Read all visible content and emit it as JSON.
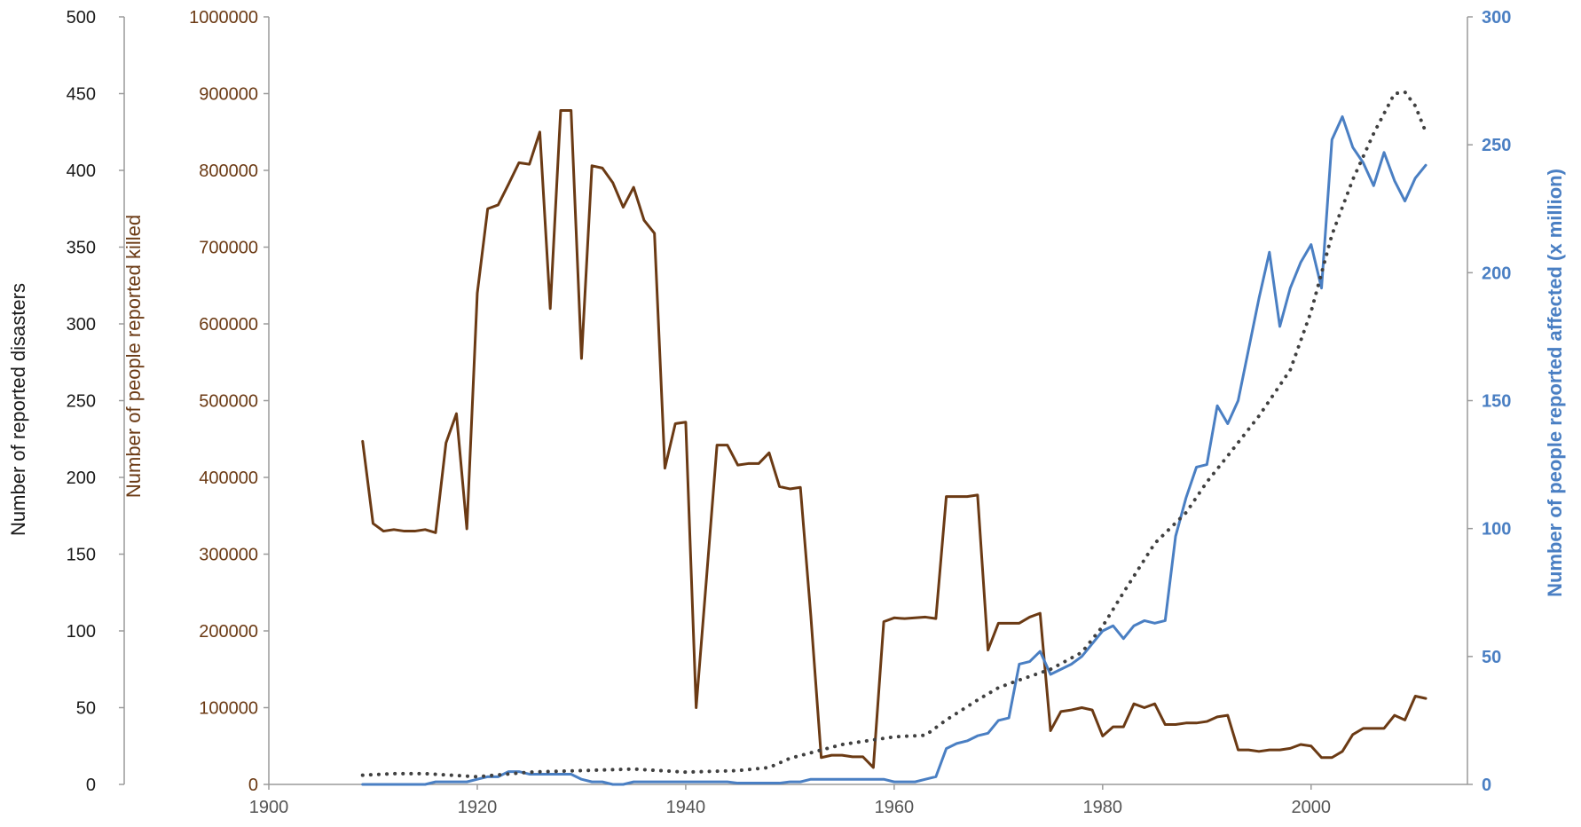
{
  "chart_data": {
    "type": "line",
    "x_axis": {
      "range": [
        1900,
        2015
      ],
      "ticks": [
        1900,
        1920,
        1940,
        1960,
        1980,
        2000
      ]
    },
    "axes": {
      "disasters": {
        "label": "Number of reported disasters",
        "range": [
          0,
          500
        ],
        "ticks": [
          0,
          50,
          100,
          150,
          200,
          250,
          300,
          350,
          400,
          450,
          500
        ],
        "color": "#1a1a1a",
        "position": "outer-left"
      },
      "killed": {
        "label": "Number of people reported killed",
        "range": [
          0,
          1000000
        ],
        "ticks": [
          0,
          100000,
          200000,
          300000,
          400000,
          500000,
          600000,
          700000,
          800000,
          900000,
          1000000
        ],
        "color": "#6b3a14",
        "position": "inner-left"
      },
      "affected": {
        "label": "Number of people reported affected (x million)",
        "range": [
          0,
          300
        ],
        "ticks": [
          0,
          50,
          100,
          150,
          200,
          250,
          300
        ],
        "color": "#4a7fc3",
        "position": "right"
      }
    },
    "series": [
      {
        "key": "killed",
        "axis": "killed",
        "color": "#6b3a14",
        "style": "solid",
        "points": [
          [
            1909,
            447000
          ],
          [
            1910,
            340000
          ],
          [
            1911,
            330000
          ],
          [
            1912,
            332000
          ],
          [
            1913,
            330000
          ],
          [
            1914,
            330000
          ],
          [
            1915,
            332000
          ],
          [
            1916,
            328000
          ],
          [
            1917,
            445000
          ],
          [
            1918,
            483000
          ],
          [
            1919,
            333000
          ],
          [
            1920,
            640000
          ],
          [
            1921,
            750000
          ],
          [
            1922,
            755000
          ],
          [
            1923,
            782000
          ],
          [
            1924,
            810000
          ],
          [
            1925,
            808000
          ],
          [
            1926,
            850000
          ],
          [
            1927,
            620000
          ],
          [
            1928,
            878000
          ],
          [
            1929,
            878000
          ],
          [
            1930,
            555000
          ],
          [
            1931,
            806000
          ],
          [
            1932,
            803000
          ],
          [
            1933,
            784000
          ],
          [
            1934,
            752000
          ],
          [
            1935,
            778000
          ],
          [
            1936,
            735000
          ],
          [
            1937,
            718000
          ],
          [
            1938,
            412000
          ],
          [
            1939,
            470000
          ],
          [
            1940,
            472000
          ],
          [
            1941,
            100000
          ],
          [
            1942,
            270000
          ],
          [
            1943,
            442000
          ],
          [
            1944,
            442000
          ],
          [
            1945,
            416000
          ],
          [
            1946,
            418000
          ],
          [
            1947,
            418000
          ],
          [
            1948,
            432000
          ],
          [
            1949,
            388000
          ],
          [
            1950,
            385000
          ],
          [
            1951,
            387000
          ],
          [
            1952,
            220000
          ],
          [
            1953,
            35000
          ],
          [
            1954,
            38000
          ],
          [
            1955,
            38000
          ],
          [
            1956,
            36000
          ],
          [
            1957,
            36000
          ],
          [
            1958,
            22000
          ],
          [
            1959,
            212000
          ],
          [
            1960,
            217000
          ],
          [
            1961,
            216000
          ],
          [
            1962,
            217000
          ],
          [
            1963,
            218000
          ],
          [
            1964,
            216000
          ],
          [
            1965,
            375000
          ],
          [
            1966,
            375000
          ],
          [
            1967,
            375000
          ],
          [
            1968,
            377000
          ],
          [
            1969,
            175000
          ],
          [
            1970,
            210000
          ],
          [
            1971,
            210000
          ],
          [
            1972,
            210000
          ],
          [
            1973,
            218000
          ],
          [
            1974,
            223000
          ],
          [
            1975,
            70000
          ],
          [
            1976,
            95000
          ],
          [
            1977,
            97000
          ],
          [
            1978,
            100000
          ],
          [
            1979,
            97000
          ],
          [
            1980,
            63000
          ],
          [
            1981,
            75000
          ],
          [
            1982,
            75000
          ],
          [
            1983,
            105000
          ],
          [
            1984,
            100000
          ],
          [
            1985,
            105000
          ],
          [
            1986,
            78000
          ],
          [
            1987,
            78000
          ],
          [
            1988,
            80000
          ],
          [
            1989,
            80000
          ],
          [
            1990,
            82000
          ],
          [
            1991,
            88000
          ],
          [
            1992,
            90000
          ],
          [
            1993,
            45000
          ],
          [
            1994,
            45000
          ],
          [
            1995,
            43000
          ],
          [
            1996,
            45000
          ],
          [
            1997,
            45000
          ],
          [
            1998,
            47000
          ],
          [
            1999,
            52000
          ],
          [
            2000,
            50000
          ],
          [
            2001,
            35000
          ],
          [
            2002,
            35000
          ],
          [
            2003,
            43000
          ],
          [
            2004,
            65000
          ],
          [
            2005,
            73000
          ],
          [
            2006,
            73000
          ],
          [
            2007,
            73000
          ],
          [
            2008,
            90000
          ],
          [
            2009,
            84000
          ],
          [
            2010,
            115000
          ],
          [
            2011,
            112000
          ]
        ]
      },
      {
        "key": "affected",
        "axis": "affected",
        "color": "#4a7fc3",
        "style": "solid",
        "points": [
          [
            1909,
            0
          ],
          [
            1915,
            0
          ],
          [
            1916,
            1
          ],
          [
            1917,
            1
          ],
          [
            1918,
            1
          ],
          [
            1919,
            1
          ],
          [
            1920,
            2
          ],
          [
            1921,
            3
          ],
          [
            1922,
            3
          ],
          [
            1923,
            5
          ],
          [
            1924,
            5
          ],
          [
            1925,
            4
          ],
          [
            1926,
            4
          ],
          [
            1927,
            4
          ],
          [
            1928,
            4
          ],
          [
            1929,
            4
          ],
          [
            1930,
            2
          ],
          [
            1931,
            1
          ],
          [
            1932,
            1
          ],
          [
            1933,
            0
          ],
          [
            1934,
            0
          ],
          [
            1935,
            1
          ],
          [
            1936,
            1
          ],
          [
            1937,
            1
          ],
          [
            1938,
            1
          ],
          [
            1939,
            1
          ],
          [
            1940,
            1
          ],
          [
            1941,
            1
          ],
          [
            1942,
            1
          ],
          [
            1943,
            1
          ],
          [
            1944,
            1
          ],
          [
            1945,
            0.5
          ],
          [
            1946,
            0.5
          ],
          [
            1947,
            0.5
          ],
          [
            1948,
            0.5
          ],
          [
            1949,
            0.5
          ],
          [
            1950,
            1
          ],
          [
            1951,
            1
          ],
          [
            1952,
            2
          ],
          [
            1953,
            2
          ],
          [
            1954,
            2
          ],
          [
            1955,
            2
          ],
          [
            1956,
            2
          ],
          [
            1957,
            2
          ],
          [
            1958,
            2
          ],
          [
            1959,
            2
          ],
          [
            1960,
            1
          ],
          [
            1961,
            1
          ],
          [
            1962,
            1
          ],
          [
            1963,
            2
          ],
          [
            1964,
            3
          ],
          [
            1965,
            14
          ],
          [
            1966,
            16
          ],
          [
            1967,
            17
          ],
          [
            1968,
            19
          ],
          [
            1969,
            20
          ],
          [
            1970,
            25
          ],
          [
            1971,
            26
          ],
          [
            1972,
            47
          ],
          [
            1973,
            48
          ],
          [
            1974,
            52
          ],
          [
            1975,
            43
          ],
          [
            1976,
            45
          ],
          [
            1977,
            47
          ],
          [
            1978,
            50
          ],
          [
            1979,
            55
          ],
          [
            1980,
            60
          ],
          [
            1981,
            62
          ],
          [
            1982,
            57
          ],
          [
            1983,
            62
          ],
          [
            1984,
            64
          ],
          [
            1985,
            63
          ],
          [
            1986,
            64
          ],
          [
            1987,
            97
          ],
          [
            1988,
            112
          ],
          [
            1989,
            124
          ],
          [
            1990,
            125
          ],
          [
            1991,
            148
          ],
          [
            1992,
            141
          ],
          [
            1993,
            150
          ],
          [
            1994,
            170
          ],
          [
            1995,
            190
          ],
          [
            1996,
            208
          ],
          [
            1997,
            179
          ],
          [
            1998,
            194
          ],
          [
            1999,
            204
          ],
          [
            2000,
            211
          ],
          [
            2001,
            194
          ],
          [
            2002,
            252
          ],
          [
            2003,
            261
          ],
          [
            2004,
            249
          ],
          [
            2005,
            243
          ],
          [
            2006,
            234
          ],
          [
            2007,
            247
          ],
          [
            2008,
            236
          ],
          [
            2009,
            228
          ],
          [
            2010,
            237
          ],
          [
            2011,
            242
          ]
        ]
      },
      {
        "key": "disasters",
        "axis": "disasters",
        "color": "#404040",
        "style": "dotted",
        "points": [
          [
            1909,
            6
          ],
          [
            1912,
            7
          ],
          [
            1915,
            7
          ],
          [
            1920,
            5
          ],
          [
            1925,
            8
          ],
          [
            1930,
            9
          ],
          [
            1935,
            10
          ],
          [
            1940,
            8
          ],
          [
            1945,
            9
          ],
          [
            1948,
            11
          ],
          [
            1950,
            17
          ],
          [
            1955,
            26
          ],
          [
            1960,
            31
          ],
          [
            1963,
            32
          ],
          [
            1965,
            42
          ],
          [
            1968,
            55
          ],
          [
            1970,
            63
          ],
          [
            1972,
            68
          ],
          [
            1975,
            75
          ],
          [
            1978,
            86
          ],
          [
            1980,
            103
          ],
          [
            1982,
            125
          ],
          [
            1985,
            157
          ],
          [
            1988,
            177
          ],
          [
            1990,
            197
          ],
          [
            1992,
            214
          ],
          [
            1995,
            240
          ],
          [
            1998,
            270
          ],
          [
            2000,
            308
          ],
          [
            2002,
            358
          ],
          [
            2004,
            394
          ],
          [
            2006,
            424
          ],
          [
            2008,
            450
          ],
          [
            2009,
            451
          ],
          [
            2010,
            442
          ],
          [
            2011,
            425
          ]
        ]
      }
    ]
  }
}
